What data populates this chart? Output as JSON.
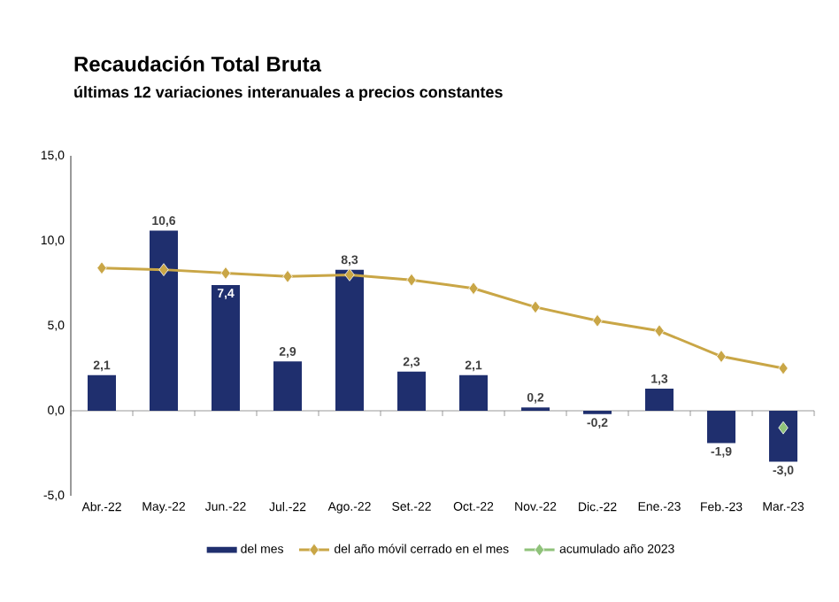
{
  "chart_data": {
    "type": "bar",
    "title": "Recaudación Total Bruta",
    "subtitle": "últimas 12 variaciones interanuales a precios constantes",
    "categories": [
      "Abr.-22",
      "May.-22",
      "Jun.-22",
      "Jul.-22",
      "Ago.-22",
      "Set.-22",
      "Oct.-22",
      "Nov.-22",
      "Dic.-22",
      "Ene.-23",
      "Feb.-23",
      "Mar.-23"
    ],
    "series": [
      {
        "name": "del mes",
        "color": "#1f2f6e",
        "values": [
          2.1,
          10.6,
          7.4,
          2.9,
          8.3,
          2.3,
          2.1,
          0.2,
          -0.2,
          1.3,
          -1.9,
          -3.0
        ],
        "value_labels": [
          "2,1",
          "10,6",
          "7,4",
          "2,9",
          "8,3",
          "2,3",
          "2,1",
          "0,2",
          "-0,2",
          "1,3",
          "-1,9",
          "-3,0"
        ]
      },
      {
        "name": "del año móvil cerrado en el mes",
        "type": "line",
        "color": "#c9a646",
        "marker": "diamond",
        "values": [
          8.4,
          8.3,
          8.1,
          7.9,
          8.0,
          7.7,
          7.2,
          6.1,
          5.3,
          4.7,
          3.2,
          2.5
        ]
      },
      {
        "name": "acumulado año 2023",
        "type": "line",
        "color": "#8fc27a",
        "marker": "diamond",
        "values": [
          null,
          null,
          null,
          null,
          null,
          null,
          null,
          null,
          null,
          null,
          null,
          -1.0
        ]
      }
    ],
    "ylim": [
      -5,
      15
    ],
    "yticks": [
      {
        "value": -5,
        "label": "-5,0"
      },
      {
        "value": 0,
        "label": "0,0"
      },
      {
        "value": 5,
        "label": "5,0"
      },
      {
        "value": 10,
        "label": "10,0"
      },
      {
        "value": 15,
        "label": "15,0"
      }
    ],
    "legend": "bottom"
  }
}
